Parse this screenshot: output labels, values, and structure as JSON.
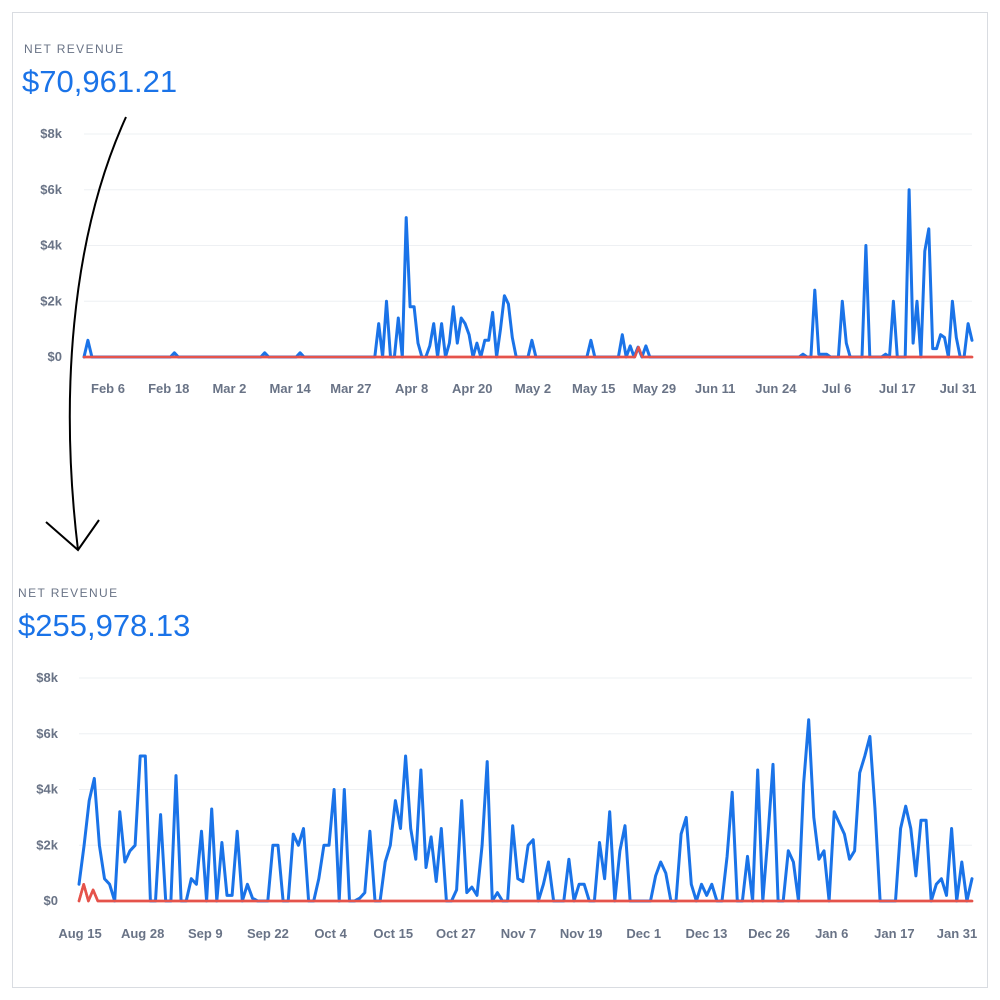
{
  "colors": {
    "revenue_line": "#1a73e8",
    "refund_line": "#e5534b",
    "text_muted": "#697386",
    "grid": "#eef0f3",
    "arrow": "#000000"
  },
  "chart_data": [
    {
      "type": "line",
      "caption": "NET REVENUE",
      "total": "$70,961.21",
      "ylim": [
        0,
        8000
      ],
      "yticks": [
        0,
        2000,
        4000,
        6000,
        8000
      ],
      "ytick_labels": [
        "$0",
        "$2k",
        "$4k",
        "$6k",
        "$8k"
      ],
      "grid": true,
      "xtick_labels": [
        "Feb 6",
        "Feb 18",
        "Mar 2",
        "Mar 14",
        "Mar 27",
        "Apr 8",
        "Apr 20",
        "May 2",
        "May 15",
        "May 29",
        "Jun 11",
        "Jun 24",
        "Jul 6",
        "Jul 17",
        "Jul 31"
      ],
      "series": [
        {
          "color": "#1a73e8",
          "values": [
            0,
            600,
            0,
            0,
            0,
            0,
            0,
            0,
            0,
            0,
            0,
            0,
            0,
            0,
            0,
            0,
            0,
            0,
            0,
            0,
            0,
            0,
            0,
            150,
            0,
            0,
            0,
            0,
            0,
            0,
            0,
            0,
            0,
            0,
            0,
            0,
            0,
            0,
            0,
            0,
            0,
            0,
            0,
            0,
            0,
            0,
            150,
            0,
            0,
            0,
            0,
            0,
            0,
            0,
            0,
            150,
            0,
            0,
            0,
            0,
            0,
            0,
            0,
            0,
            0,
            0,
            0,
            0,
            0,
            0,
            0,
            0,
            0,
            0,
            0,
            1200,
            0,
            2000,
            0,
            0,
            1400,
            0,
            5000,
            1800,
            1800,
            500,
            0,
            0,
            400,
            1200,
            0,
            1200,
            0,
            500,
            1800,
            500,
            1400,
            1200,
            800,
            0,
            500,
            0,
            600,
            600,
            1600,
            0,
            1000,
            2200,
            1900,
            700,
            0,
            0,
            0,
            0,
            600,
            0,
            0,
            0,
            0,
            0,
            0,
            0,
            0,
            0,
            0,
            0,
            0,
            0,
            0,
            600,
            0,
            0,
            0,
            0,
            0,
            0,
            0,
            800,
            0,
            400,
            0,
            350,
            0,
            400,
            0,
            0,
            0,
            0,
            0,
            0,
            0,
            0,
            0,
            0,
            0,
            0,
            0,
            0,
            0,
            0,
            0,
            0,
            0,
            0,
            0,
            0,
            0,
            0,
            0,
            0,
            0,
            0,
            0,
            0,
            0,
            0,
            0,
            0,
            0,
            0,
            0,
            0,
            0,
            100,
            0,
            0,
            2400,
            100,
            100,
            100,
            0,
            0,
            0,
            2000,
            500,
            0,
            0,
            0,
            0,
            4000,
            0,
            0,
            0,
            0,
            100,
            0,
            2000,
            0,
            0,
            0,
            6000,
            500,
            2000,
            0,
            3800,
            4600,
            300,
            300,
            800,
            700,
            0,
            2000,
            700,
            0,
            0,
            1200,
            600
          ]
        },
        {
          "color": "#e5534b",
          "values": [
            0,
            0,
            0,
            0,
            0,
            0,
            0,
            0,
            0,
            0,
            0,
            0,
            0,
            0,
            0,
            0,
            0,
            0,
            0,
            0,
            0,
            0,
            0,
            0,
            0,
            0,
            0,
            0,
            0,
            0,
            0,
            0,
            0,
            0,
            0,
            0,
            0,
            0,
            0,
            0,
            0,
            0,
            0,
            0,
            0,
            0,
            0,
            0,
            0,
            0,
            0,
            0,
            0,
            0,
            0,
            0,
            0,
            0,
            0,
            0,
            0,
            0,
            0,
            0,
            0,
            0,
            0,
            0,
            0,
            0,
            0,
            0,
            0,
            0,
            0,
            0,
            0,
            0,
            0,
            0,
            0,
            0,
            0,
            0,
            0,
            0,
            0,
            0,
            0,
            0,
            0,
            0,
            0,
            0,
            0,
            0,
            0,
            0,
            0,
            0,
            0,
            0,
            0,
            0,
            0,
            0,
            0,
            0,
            0,
            0,
            0,
            0,
            0,
            0,
            0,
            0,
            0,
            0,
            0,
            0,
            0,
            0,
            0,
            0,
            0,
            0,
            0,
            0,
            0,
            0,
            0,
            0,
            0,
            0,
            0,
            0,
            0,
            0,
            0,
            0,
            0,
            0,
            0,
            0,
            0,
            0,
            0,
            0,
            350,
            0,
            0,
            0,
            0,
            0,
            0,
            0,
            0,
            0,
            0,
            0,
            0,
            0,
            0,
            0,
            0,
            0,
            0,
            0,
            0,
            0,
            0,
            0,
            0,
            0,
            0,
            0,
            0,
            0,
            0,
            0,
            0,
            0,
            0,
            0,
            0,
            0,
            0,
            0,
            0,
            0,
            0,
            0,
            0,
            0,
            0,
            0,
            0,
            0,
            0,
            0,
            0,
            0,
            0,
            0,
            0,
            0,
            0,
            0,
            0,
            0,
            0,
            0,
            0,
            0,
            0,
            0,
            0,
            0,
            0,
            0,
            0,
            0,
            0,
            0,
            0,
            0,
            0,
            0,
            0,
            0,
            0,
            0,
            0,
            0,
            0,
            0,
            0,
            0
          ]
        }
      ]
    },
    {
      "type": "line",
      "caption": "NET REVENUE",
      "total": "$255,978.13",
      "ylim": [
        0,
        8000
      ],
      "yticks": [
        0,
        2000,
        4000,
        6000,
        8000
      ],
      "ytick_labels": [
        "$0",
        "$2k",
        "$4k",
        "$6k",
        "$8k"
      ],
      "grid": true,
      "xtick_labels": [
        "Aug 15",
        "Aug 28",
        "Sep 9",
        "Sep 22",
        "Oct 4",
        "Oct 15",
        "Oct 27",
        "Nov 7",
        "Nov 19",
        "Dec 1",
        "Dec 13",
        "Dec 26",
        "Jan 6",
        "Jan 17",
        "Jan 31"
      ],
      "series": [
        {
          "color": "#1a73e8",
          "values": [
            600,
            2000,
            3600,
            4400,
            2000,
            800,
            600,
            0,
            3200,
            1400,
            1800,
            2000,
            5200,
            5200,
            0,
            0,
            3100,
            0,
            0,
            4500,
            0,
            0,
            800,
            600,
            2500,
            0,
            3300,
            0,
            2100,
            200,
            200,
            2500,
            0,
            600,
            100,
            0,
            0,
            0,
            2000,
            2000,
            0,
            0,
            2400,
            2000,
            2600,
            0,
            0,
            800,
            2000,
            2000,
            4000,
            0,
            4000,
            0,
            0,
            100,
            300,
            2500,
            0,
            0,
            1400,
            2000,
            3600,
            2600,
            5200,
            2600,
            1500,
            4700,
            1200,
            2300,
            700,
            2600,
            0,
            0,
            400,
            3600,
            300,
            500,
            200,
            2000,
            5000,
            0,
            300,
            0,
            0,
            2700,
            800,
            700,
            2000,
            2200,
            0,
            600,
            1400,
            0,
            0,
            0,
            1500,
            0,
            600,
            600,
            0,
            0,
            2100,
            800,
            3200,
            0,
            1800,
            2700,
            0,
            0,
            0,
            0,
            0,
            900,
            1400,
            1000,
            0,
            0,
            2400,
            3000,
            600,
            0,
            600,
            200,
            600,
            0,
            0,
            1600,
            3900,
            0,
            0,
            1600,
            0,
            4700,
            0,
            2300,
            4900,
            0,
            0,
            1800,
            1400,
            0,
            4200,
            6500,
            3000,
            1500,
            1800,
            0,
            3200,
            2800,
            2400,
            1500,
            1800,
            4600,
            5200,
            5900,
            3300,
            0,
            0,
            0,
            0,
            2600,
            3400,
            2600,
            900,
            2900,
            2900,
            0,
            600,
            800,
            200,
            2600,
            0,
            1400,
            0,
            800
          ]
        },
        {
          "color": "#e5534b",
          "values": [
            0,
            600,
            0,
            400,
            0,
            0,
            0,
            0,
            0,
            0,
            0,
            0,
            0,
            0,
            0,
            0,
            0,
            0,
            0,
            0,
            0,
            0,
            0,
            0,
            0,
            0,
            0,
            0,
            0,
            0,
            0,
            0,
            0,
            0,
            0,
            0,
            0,
            0,
            0,
            0,
            0,
            0,
            0,
            0,
            0,
            0,
            0,
            0,
            0,
            0,
            0,
            0,
            0,
            0,
            0,
            0,
            0,
            0,
            0,
            0,
            0,
            0,
            0,
            0,
            0,
            0,
            0,
            0,
            0,
            0,
            0,
            0,
            0,
            0,
            0,
            0,
            0,
            0,
            0,
            0,
            0,
            0,
            0,
            0,
            0,
            0,
            0,
            0,
            0,
            0,
            0,
            0,
            0,
            0,
            0,
            0,
            0,
            0,
            0,
            0,
            0,
            0,
            0,
            0,
            0,
            0,
            0,
            0,
            0,
            0,
            0,
            0,
            0,
            0,
            0,
            0,
            0,
            0,
            0,
            0,
            0,
            0,
            0,
            0,
            0,
            0,
            0,
            0,
            0,
            0,
            0,
            0,
            0,
            0,
            0,
            0,
            0,
            0,
            0,
            0,
            0,
            0,
            0,
            0,
            0,
            0,
            0,
            0,
            0,
            0,
            0,
            0,
            0,
            0,
            0,
            0,
            0,
            0,
            0,
            0,
            0,
            0,
            0,
            0,
            0,
            0,
            0,
            0,
            0,
            0,
            0,
            0,
            0,
            0,
            0,
            0,
            0,
            0,
            0,
            0,
            0,
            0,
            0,
            0,
            0,
            0,
            0,
            0,
            0,
            0,
            0
          ]
        }
      ]
    }
  ]
}
